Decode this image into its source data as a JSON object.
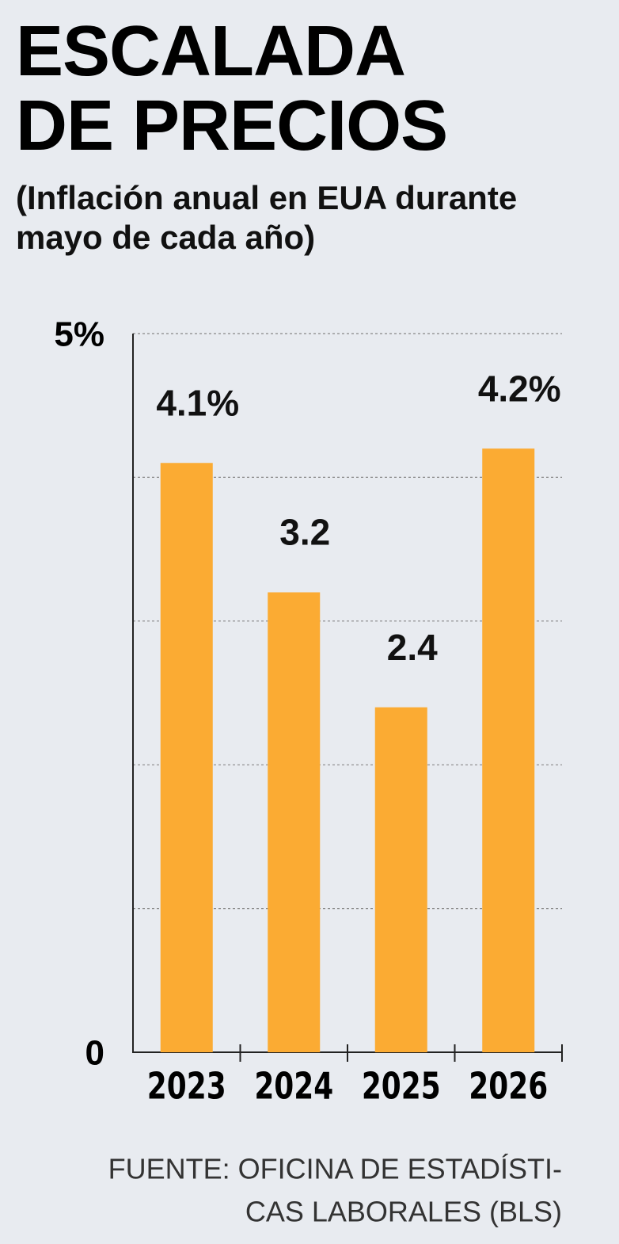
{
  "chart_data": {
    "type": "bar",
    "title": "ESCALADA DE PRECIOS",
    "subtitle": "(Inflación anual en EUA durante mayo de cada año)",
    "categories": [
      "2023",
      "2024",
      "2025",
      "2026"
    ],
    "values": [
      4.1,
      3.2,
      2.4,
      4.2
    ],
    "value_labels": [
      "4.1%",
      "3.2",
      "2.4",
      "4.2%"
    ],
    "color": "#fbab33",
    "ylim": [
      0,
      5
    ],
    "yticks": [
      0,
      {
        "value": 5,
        "label": "5%"
      }
    ],
    "gridlines": [
      1,
      2,
      3,
      4,
      5
    ],
    "grid": true,
    "source": [
      "FUENTE: OFICINA DE ESTADÍSTI-",
      "CAS LABORALES (BLS)"
    ]
  }
}
